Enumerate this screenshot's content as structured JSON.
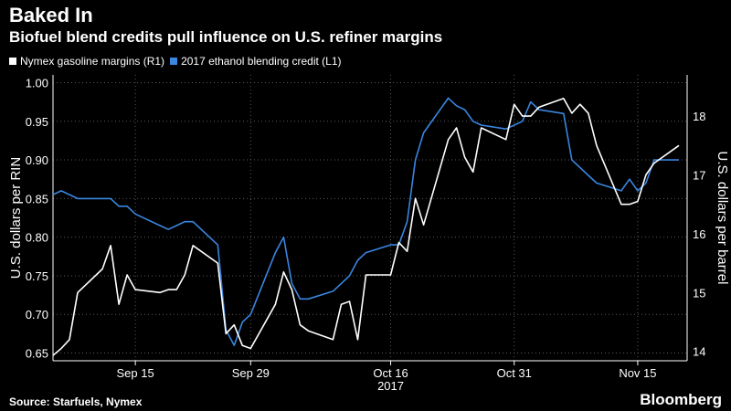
{
  "header": {
    "title": "Baked In",
    "subtitle": "Biofuel blend credits pull influence on U.S. refiner margins"
  },
  "footer": {
    "source": "Source: Starfuels, Nymex",
    "brand": "Bloomberg"
  },
  "colors": {
    "background": "#000000",
    "gasoline": "#ffffff",
    "ethanol": "#3a86e0",
    "grid": "#5a5a5a"
  },
  "chart_data": {
    "type": "line",
    "left_axis": {
      "label": "U.S. dollars per RIN",
      "range": [
        0.64,
        1.01
      ],
      "ticks": [
        0.65,
        0.7,
        0.75,
        0.8,
        0.85,
        0.9,
        0.95,
        1.0
      ],
      "tick_labels": [
        "0.65",
        "0.70",
        "0.75",
        "0.80",
        "0.85",
        "0.90",
        "0.95",
        "1.00"
      ]
    },
    "right_axis": {
      "label": "U.S. dollars per barrel",
      "range": [
        13.84,
        18.7
      ],
      "ticks": [
        14,
        15,
        16,
        17,
        18
      ],
      "tick_labels": [
        "14",
        "15",
        "16",
        "17",
        "18"
      ]
    },
    "x_axis": {
      "ticks": [
        "2017-09-15",
        "2017-09-29",
        "2017-10-16",
        "2017-10-31",
        "2017-11-15"
      ],
      "tick_labels": [
        "Sep 15",
        "Sep 29",
        "Oct 16",
        "Oct 31",
        "Nov 15"
      ],
      "year_label": "2017",
      "range": [
        "2017-09-05",
        "2017-11-21"
      ]
    },
    "grid": true,
    "legend_position": "top-left",
    "series": [
      {
        "name": "Nymex gasoline margins (R1)",
        "axis": "right",
        "color": "#ffffff",
        "dates": [
          "2017-09-05",
          "2017-09-06",
          "2017-09-07",
          "2017-09-08",
          "2017-09-11",
          "2017-09-12",
          "2017-09-13",
          "2017-09-14",
          "2017-09-15",
          "2017-09-18",
          "2017-09-19",
          "2017-09-20",
          "2017-09-21",
          "2017-09-22",
          "2017-09-25",
          "2017-09-26",
          "2017-09-27",
          "2017-09-28",
          "2017-09-29",
          "2017-10-02",
          "2017-10-03",
          "2017-10-04",
          "2017-10-05",
          "2017-10-06",
          "2017-10-09",
          "2017-10-10",
          "2017-10-11",
          "2017-10-12",
          "2017-10-13",
          "2017-10-16",
          "2017-10-17",
          "2017-10-18",
          "2017-10-19",
          "2017-10-20",
          "2017-10-23",
          "2017-10-24",
          "2017-10-25",
          "2017-10-26",
          "2017-10-27",
          "2017-10-30",
          "2017-10-31",
          "2017-11-01",
          "2017-11-02",
          "2017-11-03",
          "2017-11-06",
          "2017-11-07",
          "2017-11-08",
          "2017-11-09",
          "2017-11-10",
          "2017-11-13",
          "2017-11-14",
          "2017-11-15",
          "2017-11-16",
          "2017-11-17",
          "2017-11-20"
        ],
        "values": [
          13.93,
          14.05,
          14.2,
          15.0,
          15.4,
          15.8,
          14.8,
          15.3,
          15.05,
          15.0,
          15.05,
          15.05,
          15.3,
          15.8,
          15.5,
          14.3,
          14.45,
          14.1,
          14.05,
          14.8,
          15.35,
          15.05,
          14.45,
          14.35,
          14.2,
          14.8,
          14.85,
          14.2,
          15.3,
          15.3,
          15.85,
          15.7,
          16.6,
          16.15,
          17.6,
          17.8,
          17.3,
          17.05,
          17.8,
          17.6,
          18.2,
          18.0,
          18.0,
          18.15,
          18.3,
          18.05,
          18.2,
          18.05,
          17.5,
          16.5,
          16.5,
          16.55,
          17.0,
          17.2,
          17.5
        ]
      },
      {
        "name": "2017 ethanol blending credit (L1)",
        "axis": "left",
        "color": "#3a86e0",
        "dates": [
          "2017-09-05",
          "2017-09-06",
          "2017-09-07",
          "2017-09-08",
          "2017-09-11",
          "2017-09-12",
          "2017-09-13",
          "2017-09-14",
          "2017-09-15",
          "2017-09-18",
          "2017-09-19",
          "2017-09-20",
          "2017-09-21",
          "2017-09-22",
          "2017-09-25",
          "2017-09-26",
          "2017-09-27",
          "2017-09-28",
          "2017-09-29",
          "2017-10-02",
          "2017-10-03",
          "2017-10-04",
          "2017-10-05",
          "2017-10-06",
          "2017-10-09",
          "2017-10-10",
          "2017-10-11",
          "2017-10-12",
          "2017-10-13",
          "2017-10-16",
          "2017-10-17",
          "2017-10-18",
          "2017-10-19",
          "2017-10-20",
          "2017-10-23",
          "2017-10-24",
          "2017-10-25",
          "2017-10-26",
          "2017-10-27",
          "2017-10-30",
          "2017-10-31",
          "2017-11-01",
          "2017-11-02",
          "2017-11-03",
          "2017-11-06",
          "2017-11-07",
          "2017-11-08",
          "2017-11-09",
          "2017-11-10",
          "2017-11-13",
          "2017-11-14",
          "2017-11-15",
          "2017-11-16",
          "2017-11-17",
          "2017-11-20"
        ],
        "values": [
          0.855,
          0.86,
          0.855,
          0.85,
          0.85,
          0.85,
          0.84,
          0.84,
          0.83,
          0.815,
          0.81,
          0.815,
          0.82,
          0.82,
          0.79,
          0.68,
          0.66,
          0.69,
          0.7,
          0.78,
          0.8,
          0.74,
          0.72,
          0.72,
          0.73,
          0.74,
          0.75,
          0.77,
          0.78,
          0.79,
          0.79,
          0.82,
          0.9,
          0.935,
          0.98,
          0.97,
          0.965,
          0.95,
          0.945,
          0.94,
          0.945,
          0.95,
          0.975,
          0.965,
          0.96,
          0.9,
          0.89,
          0.88,
          0.87,
          0.86,
          0.875,
          0.86,
          0.87,
          0.9,
          0.9
        ]
      }
    ]
  }
}
